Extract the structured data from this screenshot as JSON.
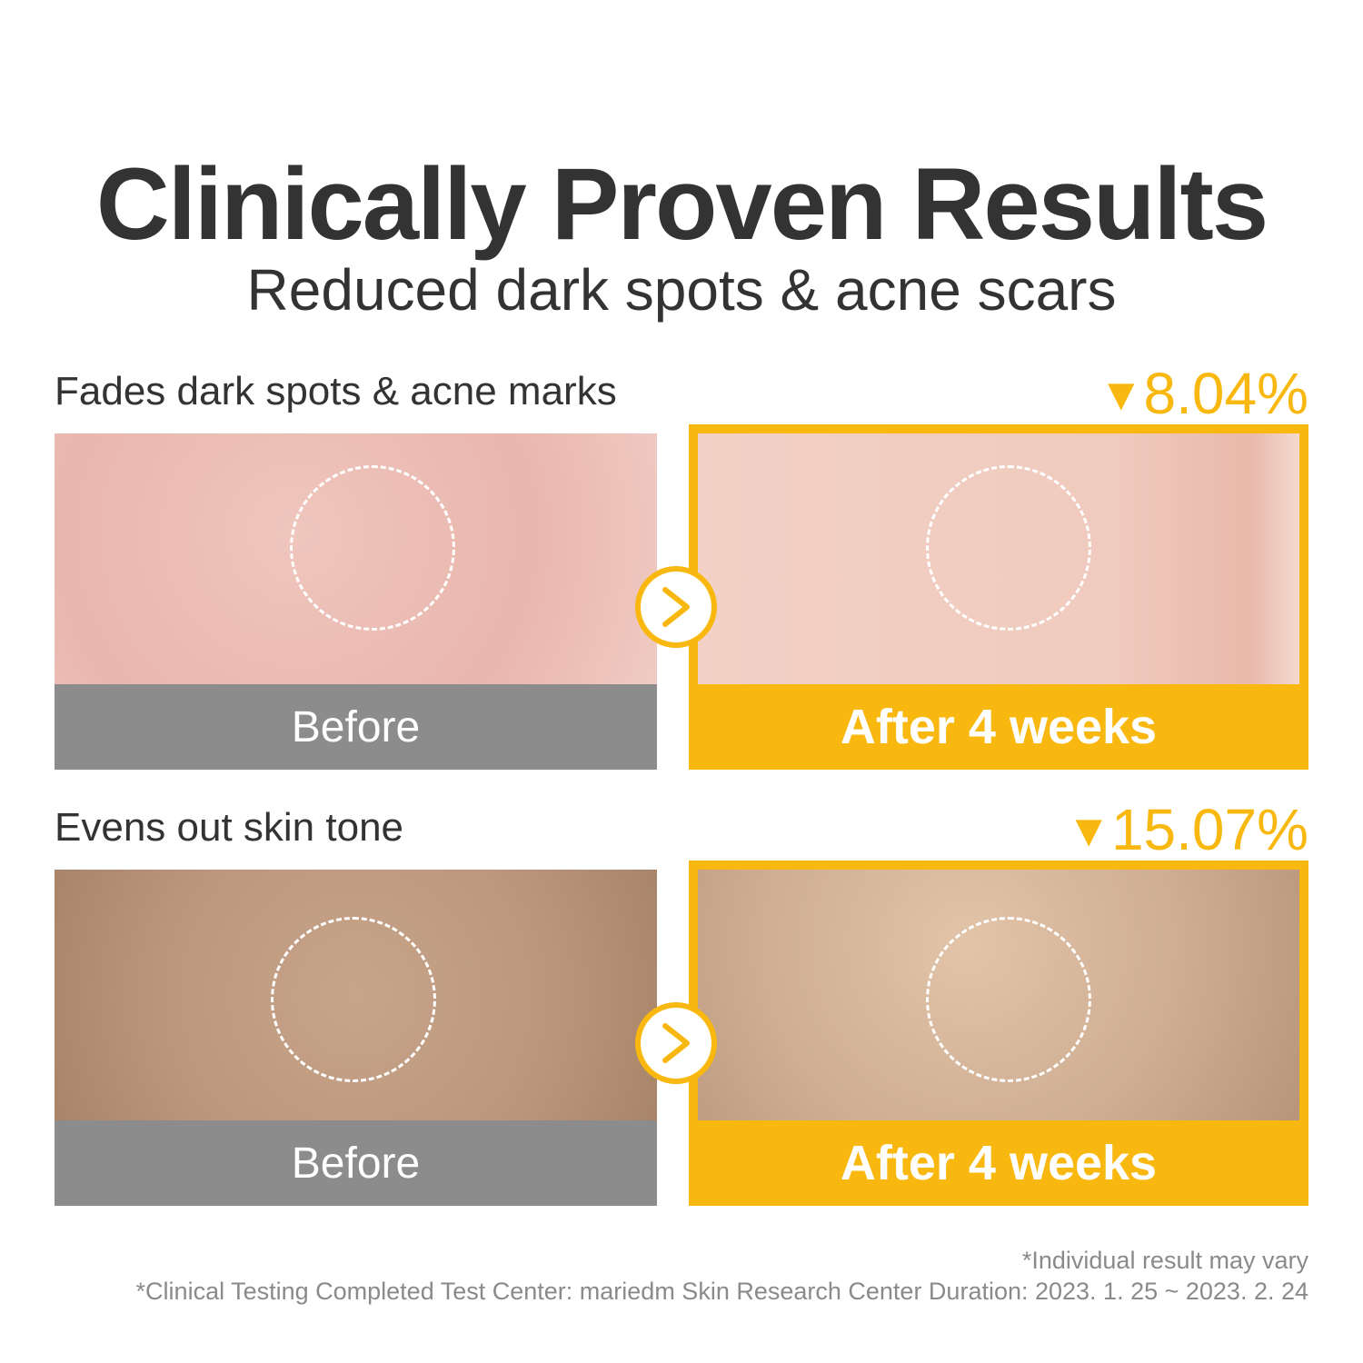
{
  "title": "Clinically Proven Results",
  "subtitle": "Reduced dark spots & acne scars",
  "colors": {
    "accent": "#f9b80f",
    "before_bar": "#8c8c8c"
  },
  "sections": [
    {
      "label": "Fades dark spots & acne marks",
      "triangle": "▼",
      "percent": "8.04%",
      "before_label": "Before",
      "after_label": "After 4 weeks",
      "icon": "chevron-right-icon"
    },
    {
      "label": "Evens out skin tone",
      "triangle": "▼",
      "percent": "15.07%",
      "before_label": "Before",
      "after_label": "After 4 weeks",
      "icon": "chevron-right-icon"
    }
  ],
  "footnotes": {
    "line1": "*Individual result may vary",
    "line2": "*Clinical Testing Completed Test Center: mariedm Skin Research Center  Duration: 2023. 1. 25 ~ 2023. 2. 24"
  }
}
